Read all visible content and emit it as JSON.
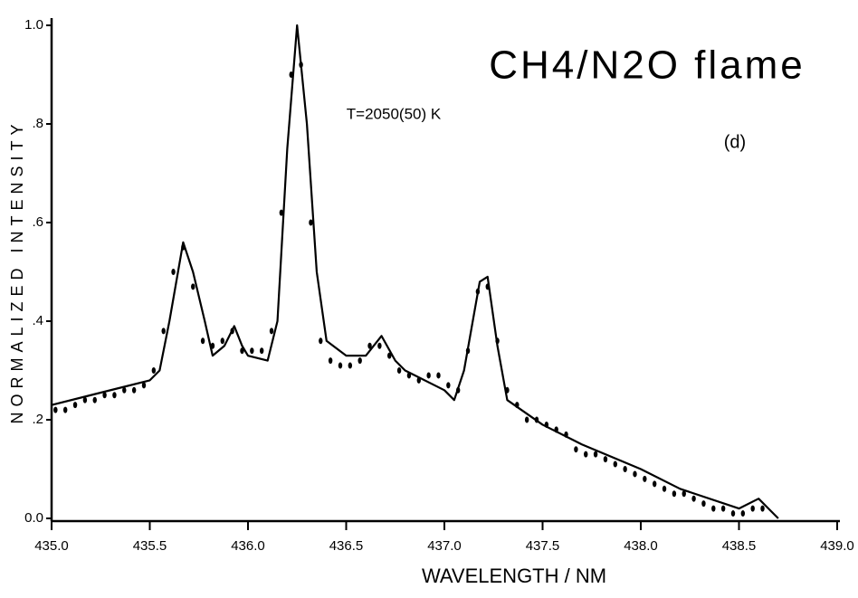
{
  "chart_data": {
    "type": "line",
    "title": "CH4/N2O flame",
    "annotations": [
      "T=2050(50) K",
      "(d)"
    ],
    "x_label": "WAVELENGTH / NM",
    "y_label": "NORMALIZED INTENSITY",
    "xlim": [
      435.0,
      439.0
    ],
    "ylim": [
      0,
      1.0
    ],
    "xticks": [
      {
        "value": 435,
        "label": "435.0"
      },
      435.5,
      {
        "value": 436,
        "label": "436.0"
      },
      436.5,
      {
        "value": 437,
        "label": "437.0"
      },
      437.5,
      {
        "value": 438,
        "label": "438.0"
      },
      438.5,
      {
        "value": 439,
        "label": "439.0"
      }
    ],
    "yticks": [
      {
        "value": 0,
        "label": "0.0"
      },
      {
        "value": 0.2,
        "label": ".2"
      },
      {
        "value": 0.4,
        "label": ".4"
      },
      {
        "value": 0.6,
        "label": ".6"
      },
      {
        "value": 0.8,
        "label": ".8"
      },
      {
        "value": 1.0,
        "label": "1.0"
      }
    ],
    "series": [
      {
        "mode": "line",
        "color": "#000000",
        "x": [
          435.0,
          435.2,
          435.5,
          435.55,
          435.6,
          435.67,
          435.72,
          435.78,
          435.82,
          435.88,
          435.93,
          435.97,
          436.0,
          436.1,
          436.15,
          436.2,
          436.25,
          436.3,
          436.35,
          436.4,
          436.5,
          436.6,
          436.68,
          436.75,
          436.8,
          437.0,
          437.05,
          437.1,
          437.18,
          437.22,
          437.27,
          437.32,
          437.5,
          437.7,
          438.0,
          438.2,
          438.5,
          438.6,
          438.65,
          438.7
        ],
        "values": [
          0.23,
          0.25,
          0.28,
          0.3,
          0.4,
          0.56,
          0.5,
          0.4,
          0.33,
          0.35,
          0.39,
          0.35,
          0.33,
          0.32,
          0.4,
          0.75,
          1.0,
          0.8,
          0.5,
          0.36,
          0.33,
          0.33,
          0.37,
          0.32,
          0.3,
          0.26,
          0.24,
          0.3,
          0.48,
          0.49,
          0.35,
          0.24,
          0.19,
          0.15,
          0.1,
          0.06,
          0.02,
          0.04,
          0.02,
          0.0
        ]
      },
      {
        "mode": "markers",
        "color": "#000000",
        "x": [
          435.02,
          435.07,
          435.12,
          435.17,
          435.22,
          435.27,
          435.32,
          435.37,
          435.42,
          435.47,
          435.52,
          435.57,
          435.62,
          435.67,
          435.72,
          435.77,
          435.82,
          435.87,
          435.92,
          435.97,
          436.02,
          436.07,
          436.12,
          436.17,
          436.22,
          436.27,
          436.32,
          436.37,
          436.42,
          436.47,
          436.52,
          436.57,
          436.62,
          436.67,
          436.72,
          436.77,
          436.82,
          436.87,
          436.92,
          436.97,
          437.02,
          437.07,
          437.12,
          437.17,
          437.22,
          437.27,
          437.32,
          437.37,
          437.42,
          437.47,
          437.52,
          437.57,
          437.62,
          437.67,
          437.72,
          437.77,
          437.82,
          437.87,
          437.92,
          437.97,
          438.02,
          438.07,
          438.12,
          438.17,
          438.22,
          438.27,
          438.32,
          438.37,
          438.42,
          438.47,
          438.52,
          438.57,
          438.62
        ],
        "values": [
          0.22,
          0.22,
          0.23,
          0.24,
          0.24,
          0.25,
          0.25,
          0.26,
          0.26,
          0.27,
          0.3,
          0.38,
          0.5,
          0.55,
          0.47,
          0.36,
          0.35,
          0.36,
          0.38,
          0.34,
          0.34,
          0.34,
          0.38,
          0.62,
          0.9,
          0.92,
          0.6,
          0.36,
          0.32,
          0.31,
          0.31,
          0.32,
          0.35,
          0.35,
          0.33,
          0.3,
          0.29,
          0.28,
          0.29,
          0.29,
          0.27,
          0.26,
          0.34,
          0.46,
          0.47,
          0.36,
          0.26,
          0.23,
          0.2,
          0.2,
          0.19,
          0.18,
          0.17,
          0.14,
          0.13,
          0.13,
          0.12,
          0.11,
          0.1,
          0.09,
          0.08,
          0.07,
          0.06,
          0.05,
          0.05,
          0.04,
          0.03,
          0.02,
          0.02,
          0.01,
          0.01,
          0.02,
          0.02
        ]
      }
    ]
  }
}
